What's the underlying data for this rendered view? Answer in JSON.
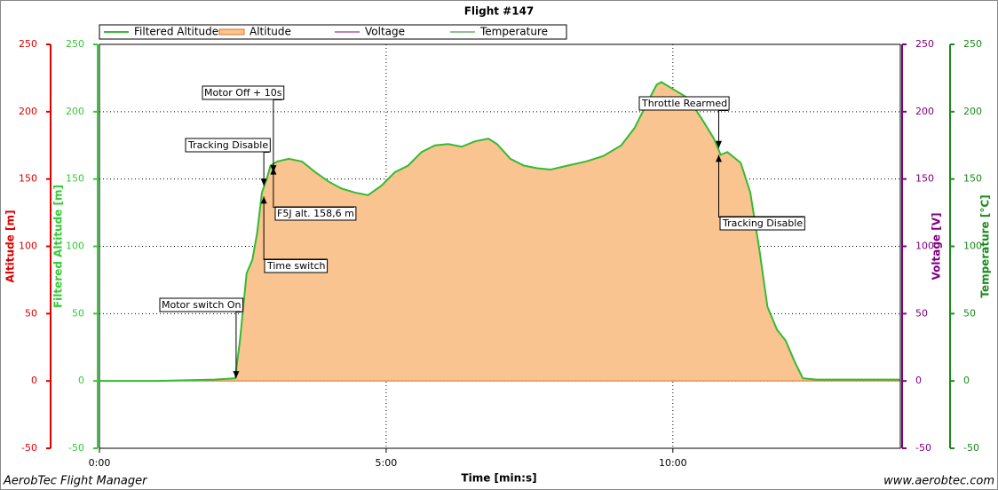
{
  "chart_data": {
    "type": "area",
    "title": "Flight #147",
    "x_label": "Time [min:s]",
    "xlim": [
      0,
      838
    ],
    "xticks": [
      {
        "value": 0,
        "label": "0:00"
      },
      {
        "value": 300,
        "label": "5:00"
      },
      {
        "value": 600,
        "label": "10:00"
      }
    ],
    "grid": true,
    "y_axes": [
      {
        "label": "Altitude [m]",
        "color": "#e00000",
        "ylim": [
          -50,
          250
        ],
        "yticks": [
          -50,
          0,
          50,
          100,
          150,
          200,
          250
        ]
      },
      {
        "label": "Filtered Altitude [m]",
        "color": "#33cc33",
        "ylim": [
          -50,
          250
        ],
        "yticks": [
          -50,
          0,
          50,
          100,
          150,
          200,
          250
        ]
      },
      {
        "label": "Voltage [V]",
        "color": "#800080",
        "ylim": [
          -50,
          250
        ],
        "yticks": [
          -50,
          0,
          50,
          100,
          150,
          200,
          250
        ]
      },
      {
        "label": "Temperature [°C]",
        "color": "#1a8a1a",
        "ylim": [
          -50,
          250
        ],
        "yticks": [
          -50,
          0,
          50,
          100,
          150,
          200,
          250
        ]
      }
    ],
    "x": [
      0,
      60,
      120,
      142,
      147,
      154,
      160,
      165,
      170,
      175,
      179,
      186,
      198,
      212,
      226,
      240,
      253,
      267,
      281,
      295,
      309,
      323,
      337,
      351,
      365,
      379,
      393,
      407,
      416,
      430,
      444,
      458,
      472,
      490,
      509,
      527,
      546,
      560,
      572,
      583,
      588,
      602,
      616,
      630,
      643,
      650,
      657,
      671,
      681,
      690,
      699,
      709,
      718,
      727,
      736,
      750,
      788,
      837
    ],
    "series": [
      {
        "name": "Filtered Altitude",
        "color": "#33bb33",
        "values": [
          0,
          0,
          1,
          2,
          30,
          80,
          90,
          110,
          140,
          150,
          160,
          163,
          165,
          163,
          155,
          148,
          143,
          140,
          138,
          145,
          155,
          160,
          170,
          175,
          176,
          174,
          178,
          180,
          176,
          165,
          160,
          158,
          157,
          160,
          163,
          167,
          175,
          188,
          205,
          220,
          222,
          216,
          210,
          195,
          180,
          168,
          170,
          162,
          140,
          100,
          55,
          38,
          30,
          15,
          2,
          1,
          1,
          1
        ]
      },
      {
        "name": "Altitude",
        "color": "#f9c490",
        "values": [
          0,
          0,
          1,
          2,
          30,
          80,
          90,
          110,
          140,
          150,
          160,
          163,
          165,
          163,
          155,
          148,
          143,
          140,
          138,
          145,
          155,
          160,
          170,
          175,
          176,
          174,
          178,
          180,
          176,
          165,
          160,
          158,
          157,
          160,
          163,
          167,
          175,
          188,
          205,
          220,
          222,
          216,
          210,
          195,
          180,
          168,
          170,
          162,
          140,
          100,
          55,
          38,
          30,
          15,
          2,
          1,
          1,
          1
        ]
      },
      {
        "name": "Voltage",
        "color": "#800080"
      },
      {
        "name": "Temperature",
        "color": "#1a8a1a"
      }
    ],
    "annotations": [
      {
        "text": "Motor switch On",
        "x": 143,
        "y": 2
      },
      {
        "text": "Time switch",
        "x": 172,
        "y": 137
      },
      {
        "text": "Tracking Disable",
        "x": 172,
        "y": 145
      },
      {
        "text": "Motor Off + 10s",
        "x": 182,
        "y": 155
      },
      {
        "text": "F5J alt. 158,6 m",
        "x": 182,
        "y": 158.6
      },
      {
        "text": "Throttle Rearmed",
        "x": 648,
        "y": 173
      },
      {
        "text": "Tracking Disable",
        "x": 648,
        "y": 168
      }
    ],
    "footer_left": "AerobTec Flight Manager",
    "footer_right": "www.aerobtec.com"
  }
}
